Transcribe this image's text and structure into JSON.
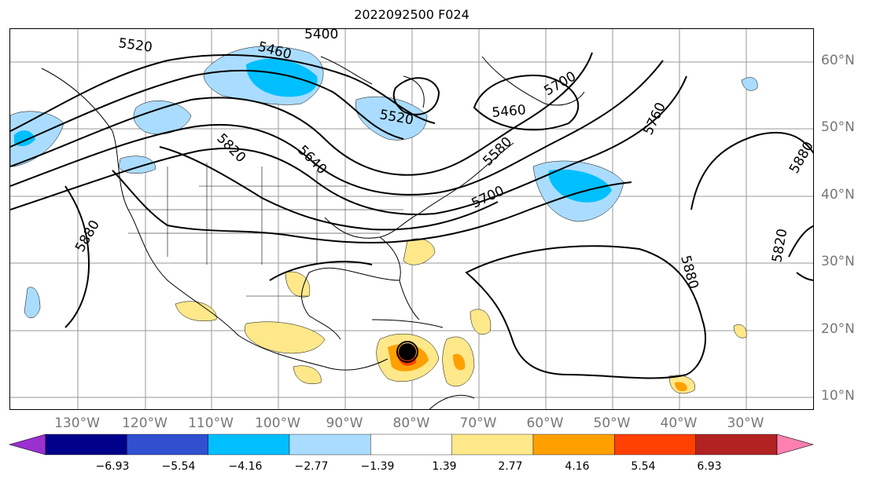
{
  "title": "2022092500 F024",
  "lat_labels": [
    "60°N",
    "50°N",
    "40°N",
    "30°N",
    "20°N",
    "10°N"
  ],
  "lon_labels": [
    "130°W",
    "120°W",
    "110°W",
    "100°W",
    "90°W",
    "80°W",
    "70°W",
    "60°W",
    "50°W",
    "40°W",
    "30°W"
  ],
  "contour_labels": [
    "5520",
    "5460",
    "5400",
    "5520",
    "5460",
    "5700",
    "5820",
    "5640",
    "5580",
    "5700",
    "5760",
    "5880",
    "5880",
    "5820",
    "5880"
  ],
  "colorbar": {
    "ticks": [
      "−6.93",
      "−5.54",
      "−4.16",
      "−2.77",
      "−1.39",
      "1.39",
      "2.77",
      "4.16",
      "5.54",
      "6.93"
    ],
    "colors": [
      "#9b30d0",
      "#00008b",
      "#3050d0",
      "#00bfff",
      "#aadcff",
      "#ffffff",
      "#ffe88a",
      "#ffa000",
      "#ff4000",
      "#b22222",
      "#ff80b0"
    ]
  },
  "storm_marker": "hurricane-symbol"
}
